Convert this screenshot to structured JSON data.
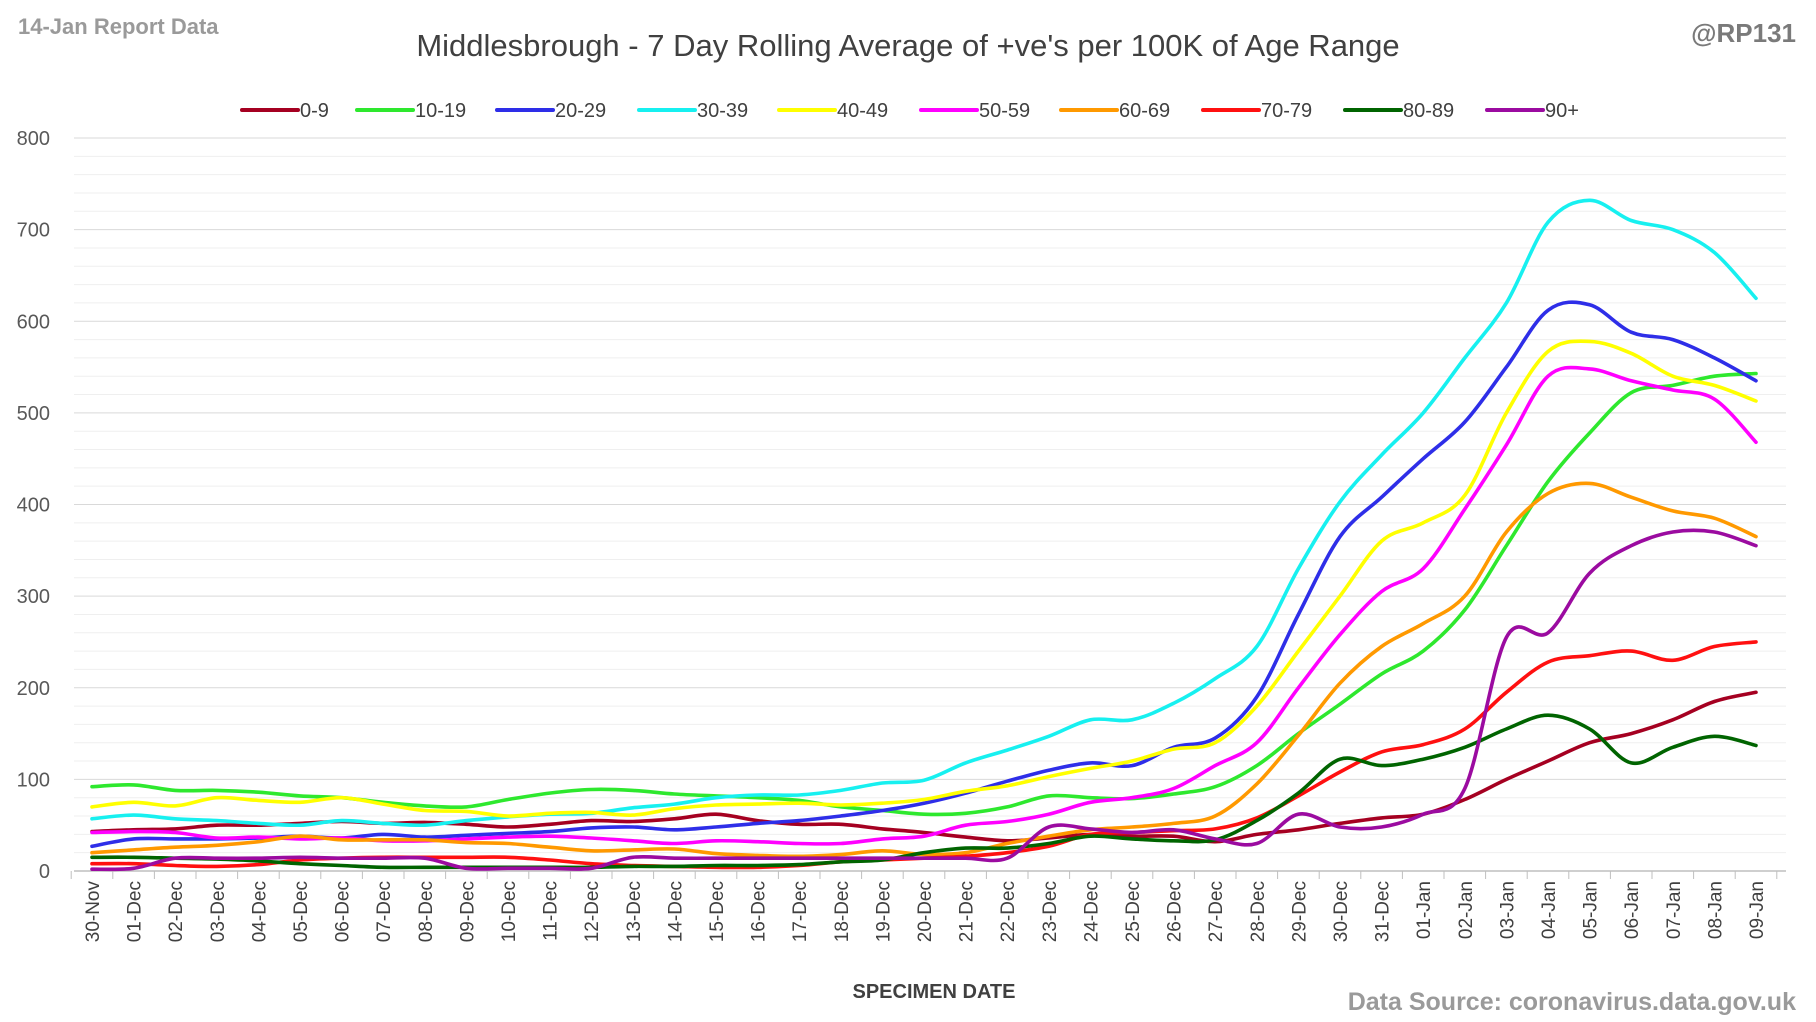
{
  "header": {
    "report_label": "14-Jan Report Data",
    "handle": "@RP131",
    "source": "Data Source: coronavirus.data.gov.uk"
  },
  "chart_data": {
    "type": "line",
    "title": "Middlesbrough - 7 Day Rolling Average of +ve's per 100K of Age Range",
    "xlabel": "SPECIMEN DATE",
    "ylabel": "",
    "ylim": [
      0,
      800
    ],
    "yticks": [
      0,
      100,
      200,
      300,
      400,
      500,
      600,
      700,
      800
    ],
    "grid": "horizontal",
    "legend_position": "top",
    "categories": [
      "30-Nov",
      "01-Dec",
      "02-Dec",
      "03-Dec",
      "04-Dec",
      "05-Dec",
      "06-Dec",
      "07-Dec",
      "08-Dec",
      "09-Dec",
      "10-Dec",
      "11-Dec",
      "12-Dec",
      "13-Dec",
      "14-Dec",
      "15-Dec",
      "16-Dec",
      "17-Dec",
      "18-Dec",
      "19-Dec",
      "20-Dec",
      "21-Dec",
      "22-Dec",
      "23-Dec",
      "24-Dec",
      "25-Dec",
      "26-Dec",
      "27-Dec",
      "28-Dec",
      "29-Dec",
      "30-Dec",
      "31-Dec",
      "01-Jan",
      "02-Jan",
      "03-Jan",
      "04-Jan",
      "05-Jan",
      "06-Jan",
      "07-Jan",
      "08-Jan",
      "09-Jan"
    ],
    "series": [
      {
        "name": "0-9",
        "color": "#a50021",
        "values": [
          43,
          45,
          46,
          50,
          50,
          52,
          54,
          52,
          53,
          51,
          48,
          51,
          55,
          54,
          57,
          62,
          55,
          51,
          51,
          46,
          42,
          37,
          33,
          36,
          40,
          38,
          38,
          32,
          40,
          45,
          52,
          58,
          62,
          78,
          100,
          120,
          140,
          150,
          165,
          185,
          195
        ]
      },
      {
        "name": "10-19",
        "color": "#2ee82e",
        "values": [
          92,
          94,
          88,
          88,
          86,
          82,
          80,
          75,
          71,
          70,
          78,
          85,
          89,
          88,
          84,
          82,
          80,
          77,
          70,
          66,
          62,
          63,
          70,
          82,
          80,
          79,
          84,
          92,
          115,
          150,
          182,
          215,
          240,
          285,
          355,
          425,
          478,
          522,
          530,
          540,
          543
        ]
      },
      {
        "name": "20-29",
        "color": "#2e2ee8",
        "values": [
          27,
          35,
          35,
          35,
          36,
          38,
          36,
          40,
          37,
          39,
          41,
          43,
          47,
          48,
          45,
          48,
          52,
          55,
          60,
          66,
          74,
          85,
          98,
          110,
          118,
          115,
          135,
          145,
          190,
          280,
          365,
          408,
          450,
          490,
          550,
          612,
          618,
          588,
          580,
          560,
          535
        ]
      },
      {
        "name": "30-39",
        "color": "#17f0f0",
        "values": [
          57,
          61,
          57,
          55,
          52,
          50,
          55,
          52,
          50,
          55,
          59,
          62,
          63,
          69,
          73,
          80,
          83,
          83,
          88,
          96,
          99,
          118,
          132,
          147,
          165,
          165,
          183,
          210,
          245,
          330,
          403,
          454,
          500,
          560,
          620,
          708,
          732,
          710,
          700,
          675,
          625
        ]
      },
      {
        "name": "40-49",
        "color": "#ffff00",
        "values": [
          70,
          75,
          71,
          80,
          77,
          75,
          80,
          73,
          66,
          65,
          60,
          63,
          64,
          61,
          68,
          72,
          73,
          74,
          72,
          74,
          78,
          87,
          93,
          103,
          112,
          120,
          133,
          140,
          180,
          240,
          300,
          360,
          380,
          410,
          500,
          567,
          578,
          565,
          540,
          530,
          513
        ]
      },
      {
        "name": "50-59",
        "color": "#ff00ff",
        "values": [
          42,
          43,
          42,
          36,
          37,
          35,
          36,
          33,
          33,
          35,
          37,
          38,
          36,
          33,
          30,
          33,
          32,
          30,
          30,
          35,
          38,
          50,
          54,
          62,
          75,
          80,
          90,
          115,
          140,
          200,
          258,
          305,
          330,
          395,
          465,
          540,
          548,
          535,
          525,
          515,
          468
        ]
      },
      {
        "name": "60-69",
        "color": "#ff9900",
        "values": [
          20,
          23,
          26,
          28,
          32,
          38,
          34,
          34,
          34,
          31,
          30,
          26,
          22,
          23,
          24,
          19,
          17,
          16,
          18,
          22,
          18,
          20,
          30,
          38,
          45,
          48,
          52,
          60,
          95,
          148,
          205,
          245,
          270,
          300,
          370,
          412,
          423,
          408,
          393,
          385,
          365
        ]
      },
      {
        "name": "70-79",
        "color": "#ff1010",
        "values": [
          8,
          8,
          6,
          5,
          7,
          12,
          14,
          15,
          15,
          15,
          15,
          12,
          8,
          6,
          5,
          4,
          4,
          6,
          10,
          12,
          14,
          16,
          20,
          27,
          40,
          42,
          44,
          46,
          58,
          82,
          108,
          130,
          138,
          155,
          195,
          228,
          235,
          240,
          230,
          245,
          250
        ]
      },
      {
        "name": "80-89",
        "color": "#006400",
        "values": [
          15,
          15,
          14,
          13,
          11,
          8,
          6,
          4,
          4,
          4,
          4,
          4,
          4,
          5,
          5,
          6,
          6,
          7,
          10,
          12,
          20,
          25,
          25,
          30,
          38,
          35,
          33,
          34,
          55,
          85,
          122,
          115,
          122,
          135,
          155,
          170,
          155,
          118,
          135,
          147,
          137
        ]
      },
      {
        "name": "90+",
        "color": "#9b0ba0",
        "values": [
          2,
          3,
          14,
          14,
          14,
          15,
          14,
          14,
          14,
          3,
          3,
          3,
          3,
          15,
          14,
          14,
          14,
          14,
          14,
          14,
          14,
          14,
          14,
          48,
          46,
          42,
          45,
          35,
          30,
          62,
          48,
          48,
          62,
          90,
          255,
          260,
          325,
          355,
          370,
          370,
          355
        ]
      }
    ]
  }
}
